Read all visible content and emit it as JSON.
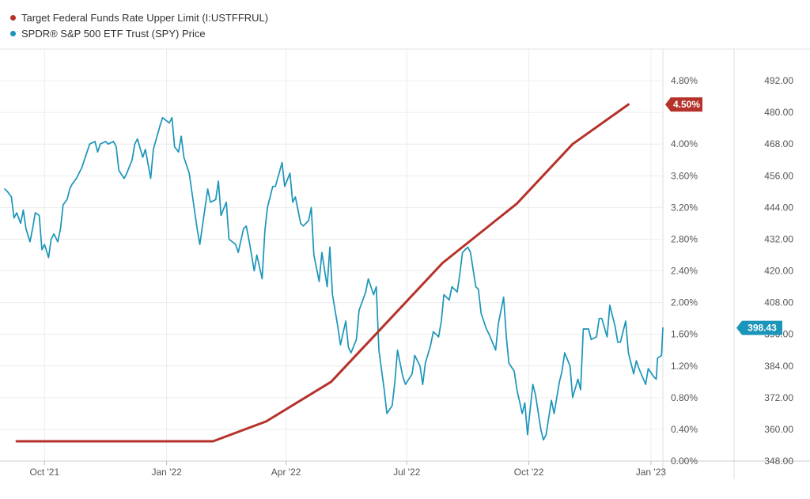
{
  "legend": [
    {
      "label": "Target Federal Funds Rate Upper Limit (I:USTFFRUL)",
      "color": "#b5322a"
    },
    {
      "label": "SPDR® S&P 500 ETF Trust (SPY) Price",
      "color": "#1b95b9"
    }
  ],
  "chart_data": {
    "type": "line",
    "x_ticks": [
      "Oct '21",
      "Jan '22",
      "Apr '22",
      "Jul '22",
      "Oct '22",
      "Jan '23"
    ],
    "x_tick_dates": [
      "2021-10-01",
      "2022-01-01",
      "2022-04-01",
      "2022-07-01",
      "2022-10-01",
      "2023-01-01"
    ],
    "x_range": [
      "2021-09-01",
      "2023-01-10"
    ],
    "left_axis": {
      "ticks": [
        "0.00%",
        "0.40%",
        "0.80%",
        "1.20%",
        "1.60%",
        "2.00%",
        "2.40%",
        "2.80%",
        "3.20%",
        "3.60%",
        "4.00%",
        "4.80%"
      ],
      "range": [
        0,
        5.2
      ]
    },
    "right_axis": {
      "ticks": [
        "348.00",
        "360.00",
        "372.00",
        "384.00",
        "396.00",
        "408.00",
        "420.00",
        "432.00",
        "444.00",
        "456.00",
        "468.00",
        "480.00",
        "492.00"
      ],
      "range": [
        348,
        504
      ]
    },
    "grid": true,
    "series": [
      {
        "name": "Target Federal Funds Rate Upper Limit (I:USTFFRUL)",
        "axis": "left",
        "color": "#b5322a",
        "last_value_label": "4.50%",
        "points": [
          [
            "2021-09-10",
            0.25
          ],
          [
            "2022-02-05",
            0.25
          ],
          [
            "2022-03-17",
            0.5
          ],
          [
            "2022-05-05",
            1.0
          ],
          [
            "2022-06-16",
            1.75
          ],
          [
            "2022-07-28",
            2.5
          ],
          [
            "2022-09-22",
            3.25
          ],
          [
            "2022-11-03",
            4.0
          ],
          [
            "2022-12-15",
            4.5
          ]
        ]
      },
      {
        "name": "SPDR® S&P 500 ETF Trust (SPY) Price",
        "axis": "right",
        "color": "#1b95b9",
        "last_value_label": "398.43",
        "points": [
          [
            "2021-09-01",
            451
          ],
          [
            "2021-09-03",
            450
          ],
          [
            "2021-09-06",
            448
          ],
          [
            "2021-09-08",
            440
          ],
          [
            "2021-09-10",
            442
          ],
          [
            "2021-09-13",
            438
          ],
          [
            "2021-09-15",
            443
          ],
          [
            "2021-09-17",
            436
          ],
          [
            "2021-09-20",
            431
          ],
          [
            "2021-09-22",
            436
          ],
          [
            "2021-09-24",
            442
          ],
          [
            "2021-09-27",
            441
          ],
          [
            "2021-09-29",
            428
          ],
          [
            "2021-10-01",
            430
          ],
          [
            "2021-10-04",
            425
          ],
          [
            "2021-10-06",
            432
          ],
          [
            "2021-10-08",
            434
          ],
          [
            "2021-10-11",
            431
          ],
          [
            "2021-10-13",
            436
          ],
          [
            "2021-10-15",
            445
          ],
          [
            "2021-10-18",
            447
          ],
          [
            "2021-10-20",
            451
          ],
          [
            "2021-10-22",
            453
          ],
          [
            "2021-10-25",
            455
          ],
          [
            "2021-10-27",
            457
          ],
          [
            "2021-10-29",
            459
          ],
          [
            "2021-11-02",
            465
          ],
          [
            "2021-11-04",
            468
          ],
          [
            "2021-11-08",
            469
          ],
          [
            "2021-11-10",
            465
          ],
          [
            "2021-11-12",
            468
          ],
          [
            "2021-11-16",
            469
          ],
          [
            "2021-11-18",
            468
          ],
          [
            "2021-11-22",
            469
          ],
          [
            "2021-11-24",
            467
          ],
          [
            "2021-11-26",
            458
          ],
          [
            "2021-11-30",
            455
          ],
          [
            "2021-12-02",
            457
          ],
          [
            "2021-12-06",
            462
          ],
          [
            "2021-12-08",
            468
          ],
          [
            "2021-12-10",
            470
          ],
          [
            "2021-12-14",
            463
          ],
          [
            "2021-12-16",
            466
          ],
          [
            "2021-12-20",
            455
          ],
          [
            "2021-12-22",
            466
          ],
          [
            "2021-12-27",
            475
          ],
          [
            "2021-12-29",
            478
          ],
          [
            "2022-01-03",
            476
          ],
          [
            "2022-01-05",
            478
          ],
          [
            "2022-01-07",
            467
          ],
          [
            "2022-01-10",
            465
          ],
          [
            "2022-01-12",
            471
          ],
          [
            "2022-01-14",
            463
          ],
          [
            "2022-01-18",
            457
          ],
          [
            "2022-01-20",
            450
          ],
          [
            "2022-01-24",
            436
          ],
          [
            "2022-01-26",
            430
          ],
          [
            "2022-01-28",
            437
          ],
          [
            "2022-02-01",
            451
          ],
          [
            "2022-02-03",
            446
          ],
          [
            "2022-02-07",
            447
          ],
          [
            "2022-02-09",
            454
          ],
          [
            "2022-02-11",
            441
          ],
          [
            "2022-02-15",
            446
          ],
          [
            "2022-02-17",
            432
          ],
          [
            "2022-02-22",
            430
          ],
          [
            "2022-02-24",
            427
          ],
          [
            "2022-02-28",
            436
          ],
          [
            "2022-03-02",
            437
          ],
          [
            "2022-03-04",
            432
          ],
          [
            "2022-03-08",
            420
          ],
          [
            "2022-03-10",
            426
          ],
          [
            "2022-03-14",
            417
          ],
          [
            "2022-03-16",
            435
          ],
          [
            "2022-03-18",
            444
          ],
          [
            "2022-03-22",
            452
          ],
          [
            "2022-03-24",
            452
          ],
          [
            "2022-03-29",
            461
          ],
          [
            "2022-03-31",
            452
          ],
          [
            "2022-04-04",
            457
          ],
          [
            "2022-04-06",
            446
          ],
          [
            "2022-04-08",
            448
          ],
          [
            "2022-04-12",
            438
          ],
          [
            "2022-04-14",
            437
          ],
          [
            "2022-04-18",
            439
          ],
          [
            "2022-04-20",
            444
          ],
          [
            "2022-04-22",
            426
          ],
          [
            "2022-04-26",
            416
          ],
          [
            "2022-04-28",
            427
          ],
          [
            "2022-05-02",
            414
          ],
          [
            "2022-05-04",
            429
          ],
          [
            "2022-05-06",
            411
          ],
          [
            "2022-05-10",
            399
          ],
          [
            "2022-05-12",
            392
          ],
          [
            "2022-05-16",
            401
          ],
          [
            "2022-05-18",
            391
          ],
          [
            "2022-05-20",
            389
          ],
          [
            "2022-05-24",
            394
          ],
          [
            "2022-05-26",
            405
          ],
          [
            "2022-05-31",
            412
          ],
          [
            "2022-06-02",
            417
          ],
          [
            "2022-06-06",
            411
          ],
          [
            "2022-06-08",
            414
          ],
          [
            "2022-06-10",
            390
          ],
          [
            "2022-06-14",
            375
          ],
          [
            "2022-06-16",
            366
          ],
          [
            "2022-06-20",
            369
          ],
          [
            "2022-06-22",
            378
          ],
          [
            "2022-06-24",
            390
          ],
          [
            "2022-06-28",
            380
          ],
          [
            "2022-06-30",
            377
          ],
          [
            "2022-07-05",
            381
          ],
          [
            "2022-07-07",
            388
          ],
          [
            "2022-07-11",
            384
          ],
          [
            "2022-07-13",
            377
          ],
          [
            "2022-07-15",
            385
          ],
          [
            "2022-07-19",
            392
          ],
          [
            "2022-07-21",
            397
          ],
          [
            "2022-07-25",
            395
          ],
          [
            "2022-07-27",
            401
          ],
          [
            "2022-07-29",
            411
          ],
          [
            "2022-08-02",
            409
          ],
          [
            "2022-08-04",
            414
          ],
          [
            "2022-08-08",
            412
          ],
          [
            "2022-08-10",
            419
          ],
          [
            "2022-08-12",
            427
          ],
          [
            "2022-08-16",
            429
          ],
          [
            "2022-08-18",
            427
          ],
          [
            "2022-08-22",
            414
          ],
          [
            "2022-08-24",
            413
          ],
          [
            "2022-08-26",
            404
          ],
          [
            "2022-08-30",
            398
          ],
          [
            "2022-09-01",
            396
          ],
          [
            "2022-09-06",
            390
          ],
          [
            "2022-09-08",
            400
          ],
          [
            "2022-09-12",
            410
          ],
          [
            "2022-09-14",
            395
          ],
          [
            "2022-09-16",
            385
          ],
          [
            "2022-09-20",
            382
          ],
          [
            "2022-09-22",
            375
          ],
          [
            "2022-09-26",
            366
          ],
          [
            "2022-09-28",
            370
          ],
          [
            "2022-09-30",
            358
          ],
          [
            "2022-10-04",
            377
          ],
          [
            "2022-10-06",
            373
          ],
          [
            "2022-10-10",
            360
          ],
          [
            "2022-10-12",
            356
          ],
          [
            "2022-10-14",
            358
          ],
          [
            "2022-10-18",
            371
          ],
          [
            "2022-10-20",
            366
          ],
          [
            "2022-10-24",
            378
          ],
          [
            "2022-10-26",
            382
          ],
          [
            "2022-10-28",
            389
          ],
          [
            "2022-11-01",
            384
          ],
          [
            "2022-11-03",
            372
          ],
          [
            "2022-11-07",
            379
          ],
          [
            "2022-11-09",
            375
          ],
          [
            "2022-11-11",
            398
          ],
          [
            "2022-11-15",
            398
          ],
          [
            "2022-11-17",
            394
          ],
          [
            "2022-11-21",
            395
          ],
          [
            "2022-11-23",
            402
          ],
          [
            "2022-11-25",
            402
          ],
          [
            "2022-11-29",
            395
          ],
          [
            "2022-12-01",
            407
          ],
          [
            "2022-12-05",
            399
          ],
          [
            "2022-12-07",
            393
          ],
          [
            "2022-12-09",
            393
          ],
          [
            "2022-12-13",
            401
          ],
          [
            "2022-12-15",
            389
          ],
          [
            "2022-12-19",
            381
          ],
          [
            "2022-12-21",
            386
          ],
          [
            "2022-12-23",
            383
          ],
          [
            "2022-12-28",
            377
          ],
          [
            "2022-12-30",
            383
          ],
          [
            "2023-01-03",
            380
          ],
          [
            "2023-01-05",
            379
          ],
          [
            "2023-01-06",
            387
          ],
          [
            "2023-01-09",
            388
          ],
          [
            "2023-01-10",
            398.43
          ]
        ]
      }
    ]
  }
}
